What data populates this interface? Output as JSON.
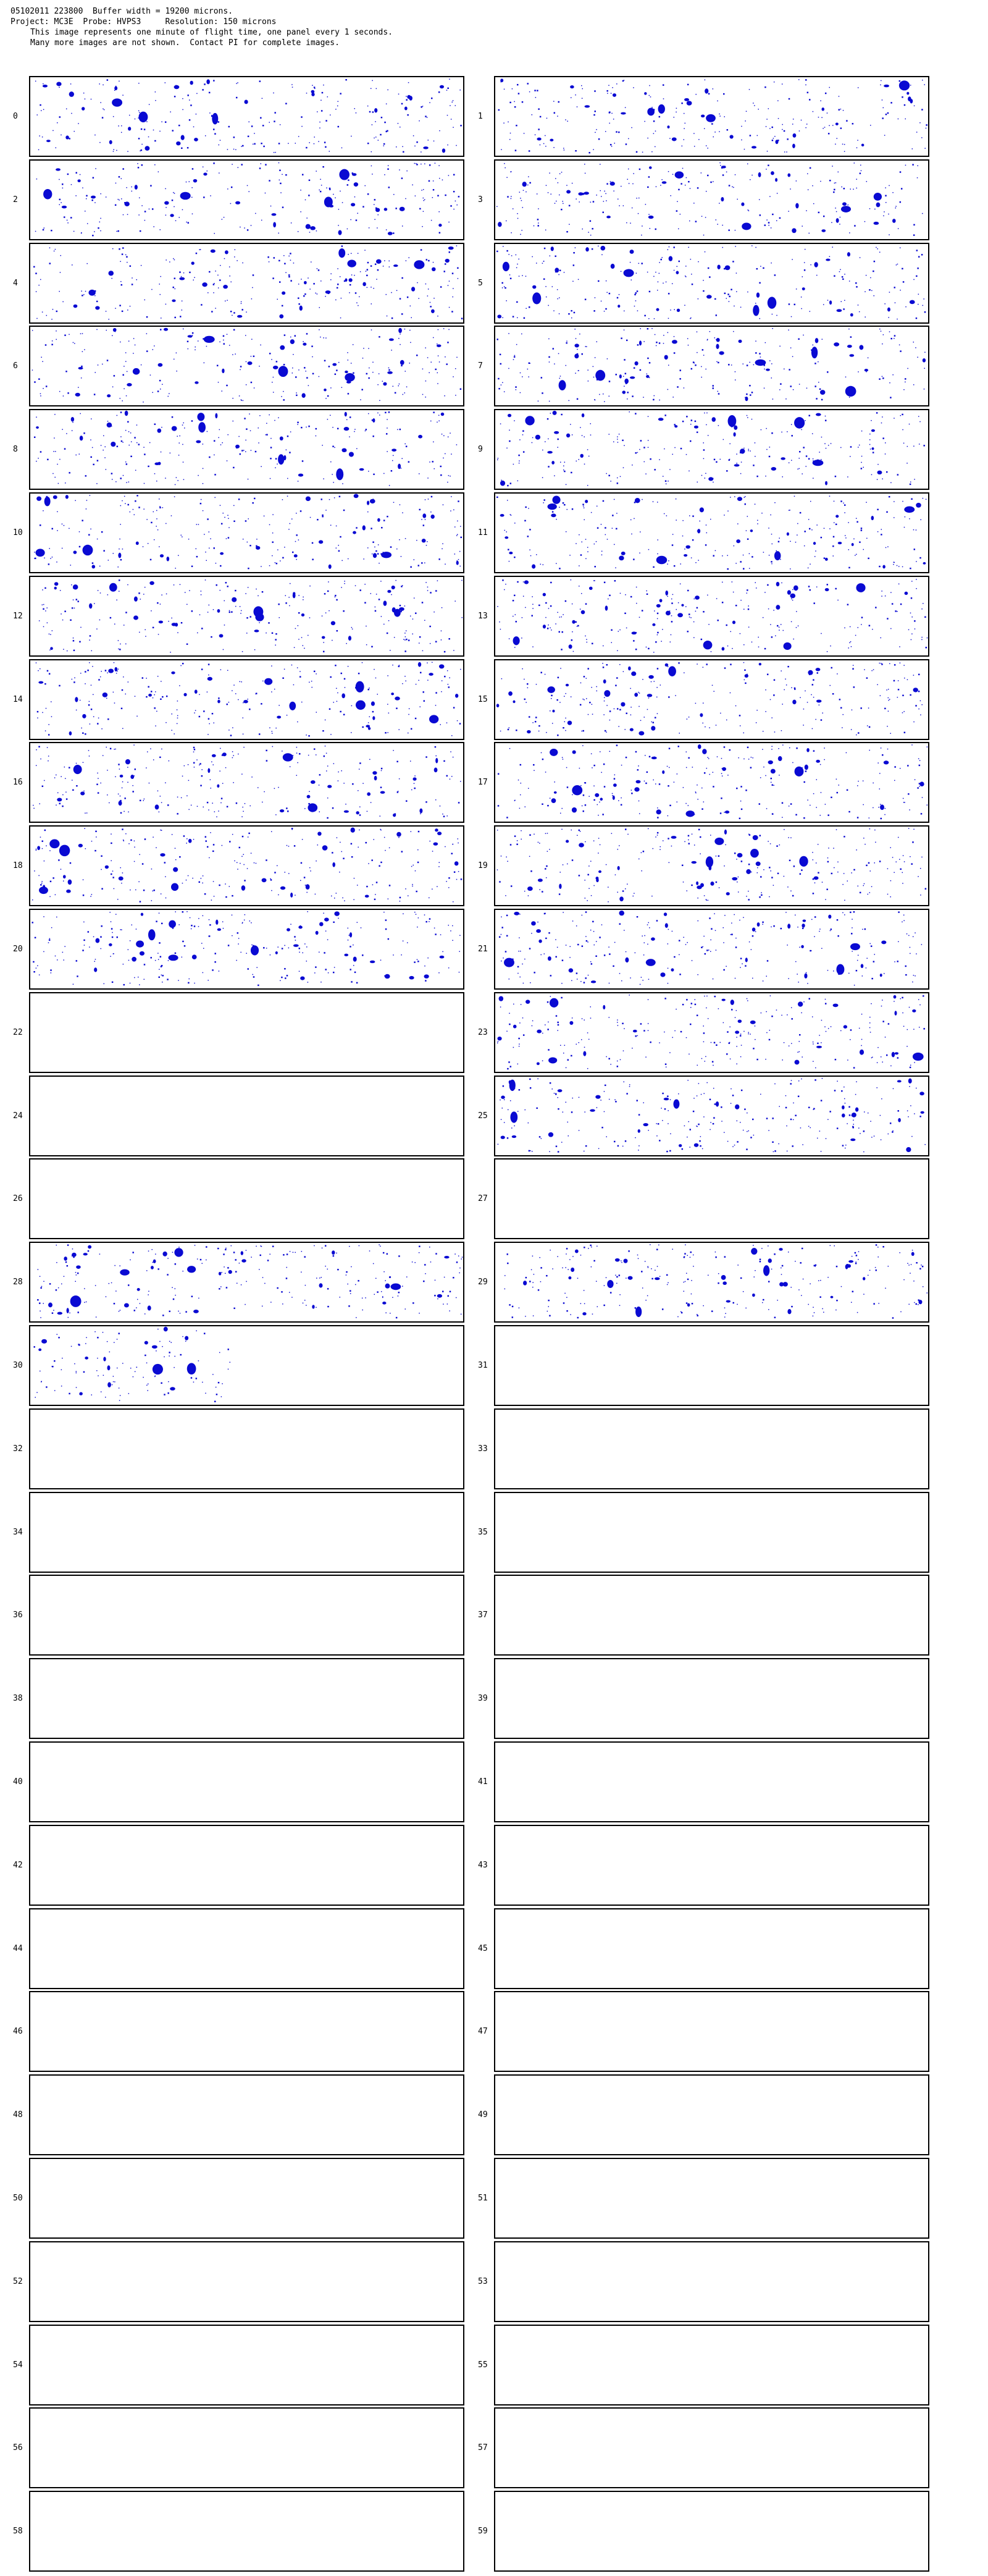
{
  "header": {
    "line1": "05102011 223800  Buffer width = 19200 microns.",
    "line2": "Project: MC3E  Probe: HVPS3     Resolution: 150 microns",
    "line3": "This image represents one minute of flight time, one panel every 1 seconds.",
    "line4": "Many more images are not shown.  Contact PI for complete images."
  },
  "colors": {
    "particle": "#0a0ad2",
    "border": "#000000",
    "background": "#ffffff"
  },
  "panels": [
    {
      "label": "0",
      "fill": 1.0
    },
    {
      "label": "1",
      "fill": 1.0
    },
    {
      "label": "2",
      "fill": 1.0
    },
    {
      "label": "3",
      "fill": 1.0
    },
    {
      "label": "4",
      "fill": 1.0
    },
    {
      "label": "5",
      "fill": 1.0
    },
    {
      "label": "6",
      "fill": 1.0
    },
    {
      "label": "7",
      "fill": 1.0
    },
    {
      "label": "8",
      "fill": 1.0
    },
    {
      "label": "9",
      "fill": 1.0
    },
    {
      "label": "10",
      "fill": 1.0
    },
    {
      "label": "11",
      "fill": 1.0
    },
    {
      "label": "12",
      "fill": 1.0
    },
    {
      "label": "13",
      "fill": 1.0
    },
    {
      "label": "14",
      "fill": 1.0
    },
    {
      "label": "15",
      "fill": 1.0
    },
    {
      "label": "16",
      "fill": 1.0
    },
    {
      "label": "17",
      "fill": 1.0
    },
    {
      "label": "18",
      "fill": 1.0
    },
    {
      "label": "19",
      "fill": 1.0
    },
    {
      "label": "20",
      "fill": 1.0
    },
    {
      "label": "21",
      "fill": 1.0
    },
    {
      "label": "22",
      "fill": 0.0
    },
    {
      "label": "23",
      "fill": 1.0
    },
    {
      "label": "24",
      "fill": 0.0
    },
    {
      "label": "25",
      "fill": 1.0
    },
    {
      "label": "26",
      "fill": 0.0
    },
    {
      "label": "27",
      "fill": 0.0
    },
    {
      "label": "28",
      "fill": 1.0
    },
    {
      "label": "29",
      "fill": 1.0
    },
    {
      "label": "30",
      "fill": 0.46
    },
    {
      "label": "31",
      "fill": 0.0
    },
    {
      "label": "32",
      "fill": 0.0
    },
    {
      "label": "33",
      "fill": 0.0
    },
    {
      "label": "34",
      "fill": 0.0
    },
    {
      "label": "35",
      "fill": 0.0
    },
    {
      "label": "36",
      "fill": 0.0
    },
    {
      "label": "37",
      "fill": 0.0
    },
    {
      "label": "38",
      "fill": 0.0
    },
    {
      "label": "39",
      "fill": 0.0
    },
    {
      "label": "40",
      "fill": 0.0
    },
    {
      "label": "41",
      "fill": 0.0
    },
    {
      "label": "42",
      "fill": 0.0
    },
    {
      "label": "43",
      "fill": 0.0
    },
    {
      "label": "44",
      "fill": 0.0
    },
    {
      "label": "45",
      "fill": 0.0
    },
    {
      "label": "46",
      "fill": 0.0
    },
    {
      "label": "47",
      "fill": 0.0
    },
    {
      "label": "48",
      "fill": 0.0
    },
    {
      "label": "49",
      "fill": 0.0
    },
    {
      "label": "50",
      "fill": 0.0
    },
    {
      "label": "51",
      "fill": 0.0
    },
    {
      "label": "52",
      "fill": 0.0
    },
    {
      "label": "53",
      "fill": 0.0
    },
    {
      "label": "54",
      "fill": 0.0
    },
    {
      "label": "55",
      "fill": 0.0
    },
    {
      "label": "56",
      "fill": 0.0
    },
    {
      "label": "57",
      "fill": 0.0
    },
    {
      "label": "58",
      "fill": 0.0
    },
    {
      "label": "59",
      "fill": 0.0
    }
  ]
}
